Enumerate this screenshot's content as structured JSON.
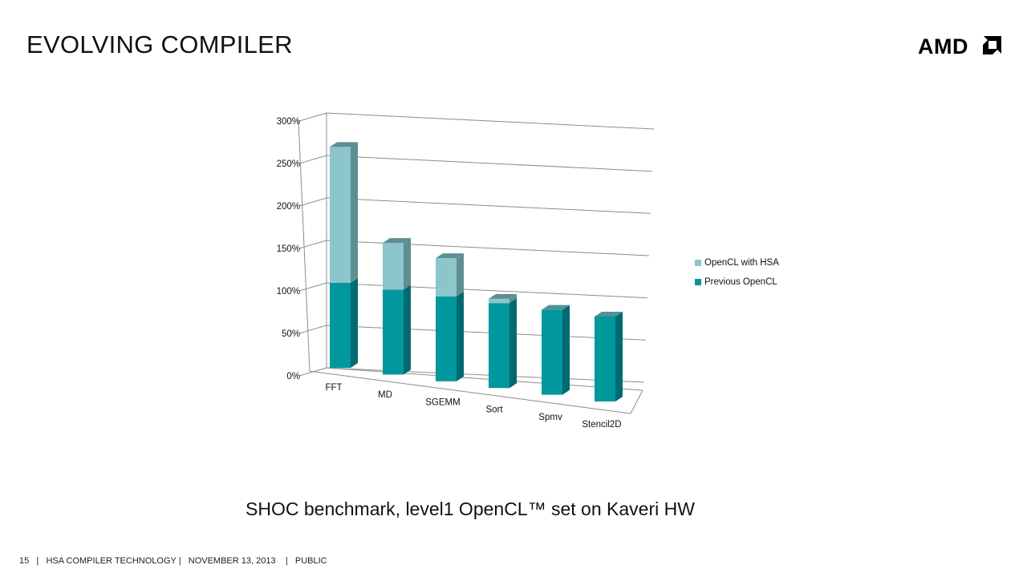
{
  "slide": {
    "title": "EVOLVING COMPILER",
    "logo_text": "AMD",
    "caption": "SHOC benchmark, level1 OpenCL™ set on Kaveri HW",
    "footer": {
      "page": "15",
      "section": "HSA COMPILER TECHNOLOGY",
      "date": "NOVEMBER 13, 2013",
      "classification": "PUBLIC"
    }
  },
  "colors": {
    "previous": "#00979D",
    "previous_side": "#006A70",
    "previous_top": "#4F9297",
    "hsa": "#8CC6CB",
    "hsa_side": "#5E8E92",
    "grid": "#8C8C8C"
  },
  "chart_data": {
    "type": "bar",
    "stacked": true,
    "title": "",
    "xlabel": "",
    "ylabel": "",
    "ylim": [
      0,
      3
    ],
    "y_ticks": [
      "0%",
      "50%",
      "100%",
      "150%",
      "200%",
      "250%",
      "300%"
    ],
    "categories": [
      "FFT",
      "MD",
      "SGEMM",
      "Sort",
      "Spmv",
      "Stencil2D"
    ],
    "series": [
      {
        "name": "Previous OpenCL",
        "values": [
          1.0,
          1.0,
          1.0,
          1.0,
          1.0,
          1.0
        ]
      },
      {
        "name": "OpenCL with HSA",
        "values": [
          1.6,
          0.55,
          0.45,
          0.05,
          0.0,
          0.0
        ]
      }
    ],
    "legend_position": "right",
    "grid": true
  }
}
